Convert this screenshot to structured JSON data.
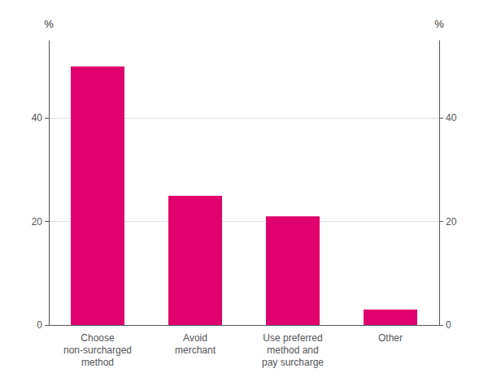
{
  "chart_data": {
    "type": "bar",
    "categories": [
      "Choose\nnon-surcharged\nmethod",
      "Avoid\nmerchant",
      "Use preferred\nmethod and\npay surcharge",
      "Other"
    ],
    "values": [
      50,
      25,
      21,
      3
    ],
    "color": "#e0006e",
    "ylim": [
      0,
      55
    ],
    "yticks": [
      0,
      20,
      40
    ],
    "y2lim": [
      0,
      55
    ],
    "y2ticks": [
      0,
      20,
      40
    ],
    "ylabel": "%",
    "y2label": "%",
    "grid": true
  }
}
